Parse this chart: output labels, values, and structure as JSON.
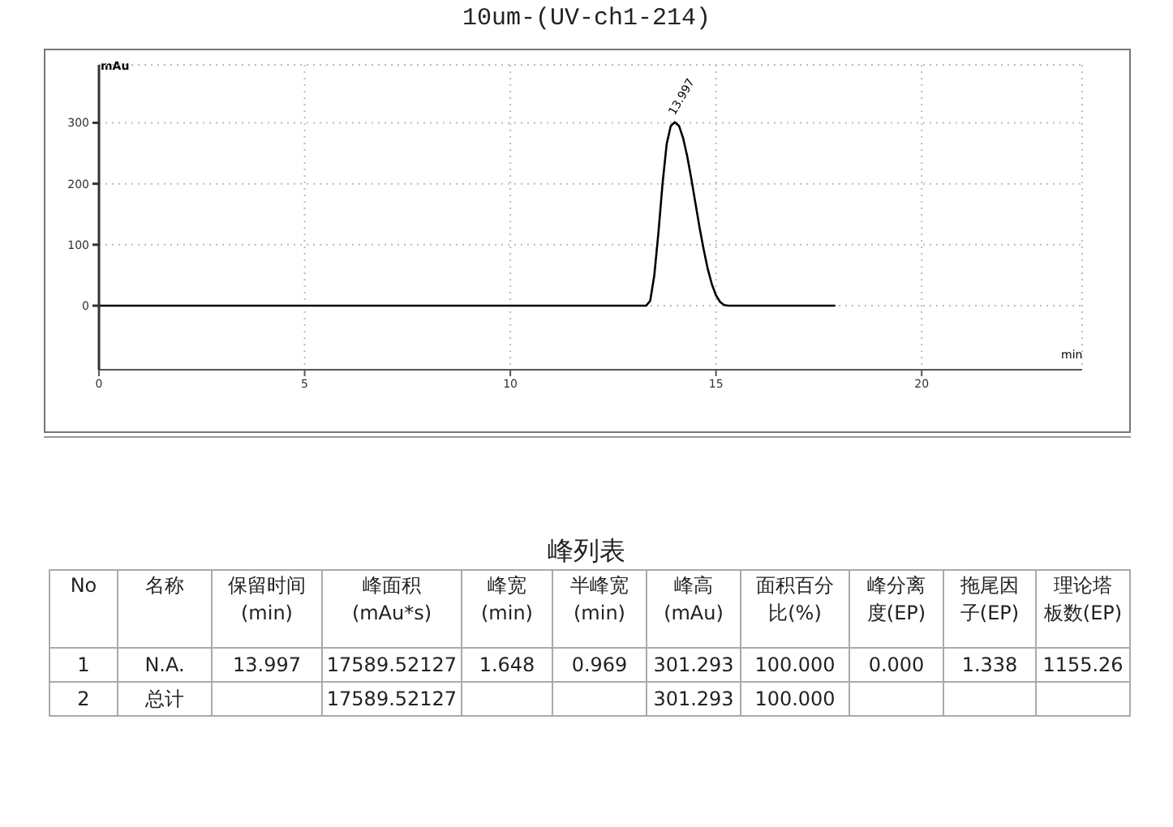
{
  "chart_data": {
    "type": "line",
    "title": "10um-(UV-ch1-214)",
    "xlabel": "min",
    "ylabel": "mAu",
    "x": [
      0,
      13.3,
      13.4,
      13.5,
      13.6,
      13.7,
      13.8,
      13.9,
      13.997,
      14.1,
      14.2,
      14.3,
      14.4,
      14.5,
      14.6,
      14.7,
      14.8,
      14.9,
      15.0,
      15.1,
      15.2,
      15.3,
      17.9
    ],
    "series": [
      {
        "color": "#000000",
        "values": [
          0,
          0,
          8,
          50,
          120,
          200,
          265,
          295,
          301,
          295,
          275,
          245,
          208,
          168,
          128,
          92,
          60,
          35,
          17,
          6,
          1,
          0,
          0
        ]
      }
    ],
    "xlim": [
      0,
      23.9
    ],
    "ylim": [
      -105,
      395
    ],
    "xticks": [
      0,
      5,
      10,
      15,
      20
    ],
    "yticks": [
      0,
      100,
      200,
      300
    ],
    "grid": true,
    "legend": false,
    "marker": "none",
    "line_style": "solid",
    "annotations": [
      {
        "text": "13.997",
        "x": 13.997,
        "y": 301
      },
      "峰列表",
      "No",
      "名称",
      "保留时间",
      "峰面积",
      "峰宽",
      "半峰宽",
      "峰高",
      "面积百分",
      "峰分离",
      "拖尾因",
      "理论塔",
      null,
      null,
      "(min)",
      "(mAu*s)",
      "(min)",
      "(min)",
      "(mAu)",
      "比(%)",
      "度(EP)",
      "子(EP)",
      "板数(EP)",
      "1",
      "N.A.",
      "13.997",
      "17589.52127",
      "1.648",
      "0.969",
      "301.293",
      "100.000",
      "0.000",
      "1.338",
      "1155.26",
      "2",
      "总计",
      null,
      "17589.52127",
      null,
      null,
      "301.293",
      "100.000",
      null,
      null,
      null
    ]
  }
}
